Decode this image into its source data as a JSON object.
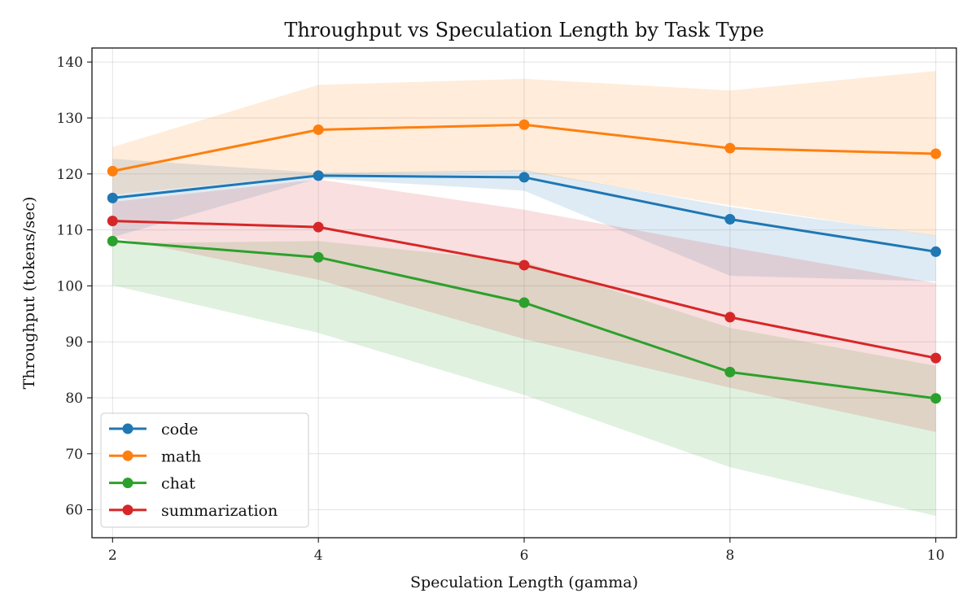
{
  "chart_data": {
    "type": "line",
    "title": "Throughput vs Speculation Length by Task Type",
    "xlabel": "Speculation Length (gamma)",
    "ylabel": "Throughput (tokens/sec)",
    "x": [
      2,
      4,
      6,
      8,
      10
    ],
    "xlim": [
      1.8,
      10.2
    ],
    "ylim": [
      55,
      142.5
    ],
    "xticks": [
      2,
      4,
      6,
      8,
      10
    ],
    "yticks": [
      60,
      70,
      80,
      90,
      100,
      110,
      120,
      130,
      140
    ],
    "grid": true,
    "legend_position": "lower-left",
    "series": [
      {
        "name": "code",
        "color": "#1f77b4",
        "values": [
          115.7,
          119.7,
          119.4,
          111.9,
          106.1
        ],
        "lower": [
          108.7,
          119.2,
          117.0,
          101.8,
          100.8
        ],
        "upper": [
          122.7,
          120.2,
          120.7,
          114.1,
          109.0
        ]
      },
      {
        "name": "math",
        "color": "#ff7f0e",
        "values": [
          120.5,
          127.9,
          128.8,
          124.6,
          123.6
        ],
        "lower": [
          116.3,
          119.9,
          120.4,
          114.4,
          108.9
        ],
        "upper": [
          124.8,
          135.9,
          137.0,
          134.9,
          138.4
        ]
      },
      {
        "name": "chat",
        "color": "#2ca02c",
        "values": [
          108.0,
          105.1,
          97.0,
          84.6,
          79.9
        ],
        "lower": [
          100.1,
          91.6,
          80.5,
          67.6,
          58.9
        ],
        "upper": [
          107.6,
          108.0,
          104.3,
          92.5,
          85.7
        ]
      },
      {
        "name": "summarization",
        "color": "#d62728",
        "values": [
          111.6,
          110.5,
          103.7,
          94.4,
          87.1
        ],
        "lower": [
          108.7,
          101.1,
          90.5,
          81.8,
          73.9
        ],
        "upper": [
          115.0,
          119.0,
          113.6,
          106.9,
          100.5
        ]
      }
    ]
  }
}
